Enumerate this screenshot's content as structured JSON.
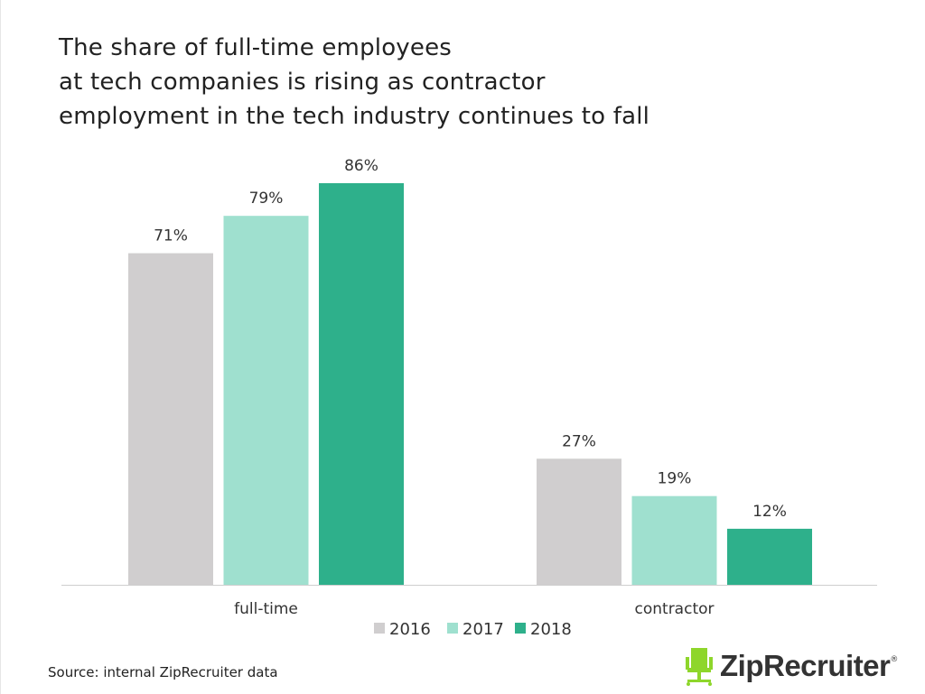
{
  "title_lines": [
    "The share of full-time employees",
    "at tech companies is rising as contractor",
    "employment in the tech industry continues to fall"
  ],
  "chart_data": {
    "type": "bar",
    "title": "The share of full-time employees at tech companies is rising as contractor employment in the tech industry continues to fall",
    "categories": [
      "full-time",
      "contractor"
    ],
    "series": [
      {
        "name": "2016",
        "values": [
          71,
          27
        ],
        "labels": [
          "71%",
          "27%"
        ],
        "color": "#d0cecf"
      },
      {
        "name": "2017",
        "values": [
          79,
          19
        ],
        "labels": [
          "79%",
          "19%"
        ],
        "color": "#9fe0cf"
      },
      {
        "name": "2018",
        "values": [
          86,
          12
        ],
        "labels": [
          "86%",
          "12%"
        ],
        "color": "#2eb08b"
      }
    ],
    "unit": "%",
    "ylim": [
      0,
      100
    ],
    "grid": false,
    "legend_position": "bottom"
  },
  "source": "Source: internal ZipRecruiter data",
  "logo": {
    "text": "ZipRecruiter",
    "reg": "®",
    "icon": "chair-icon",
    "icon_color": "#8ed62b"
  }
}
